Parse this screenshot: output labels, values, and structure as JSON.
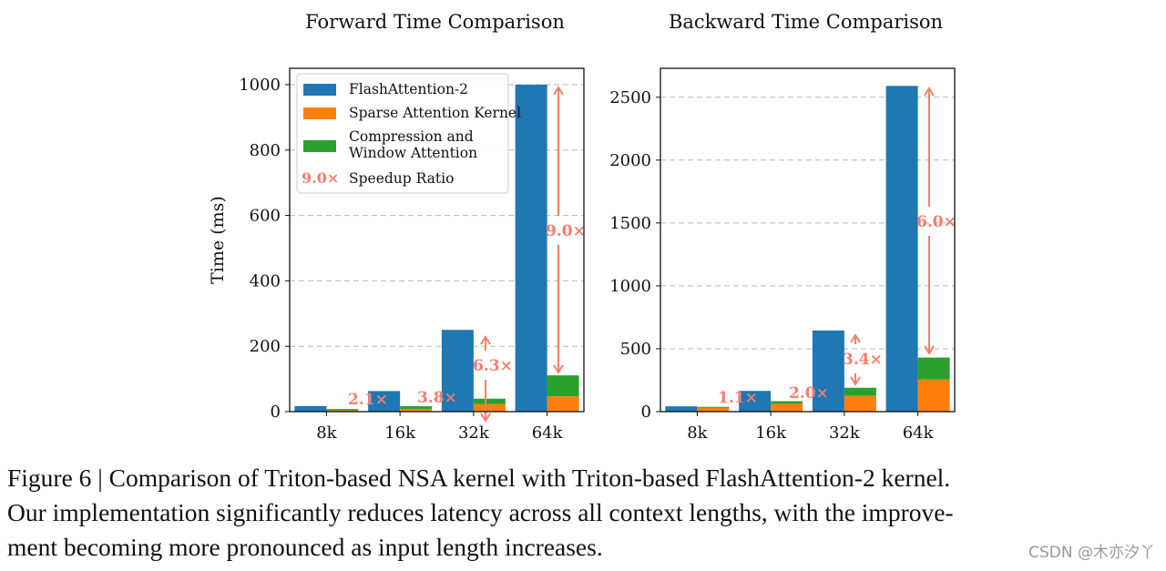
{
  "chart_data": [
    {
      "type": "bar",
      "title": "Forward Time Comparison",
      "xlabel": "",
      "ylabel": "Time (ms)",
      "categories": [
        "8k",
        "16k",
        "32k",
        "64k"
      ],
      "ylim": [
        0,
        1050
      ],
      "yticks": [
        0,
        200,
        400,
        600,
        800,
        1000
      ],
      "grid": true,
      "legend_position": "top-left",
      "series": [
        {
          "name": "FlashAttention-2",
          "color": "#1f77b4",
          "values": [
            17,
            63,
            250,
            1000
          ]
        },
        {
          "name": "Sparse Attention Kernel",
          "color": "#ff7f0e",
          "stack": "nsa",
          "values": [
            4,
            8,
            23,
            47
          ]
        },
        {
          "name": "Compression and Window Attention",
          "color": "#2ca02c",
          "stack": "nsa",
          "values": [
            4,
            8.5,
            16.6,
            64
          ]
        }
      ],
      "speedup": [
        "2.1×",
        "3.8×",
        "6.3×",
        "9.0×"
      ]
    },
    {
      "type": "bar",
      "title": "Backward Time Comparison",
      "xlabel": "",
      "ylabel": "",
      "categories": [
        "8k",
        "16k",
        "32k",
        "64k"
      ],
      "ylim": [
        0,
        2730
      ],
      "yticks": [
        0,
        500,
        1000,
        1500,
        2000,
        2500
      ],
      "grid": true,
      "series": [
        {
          "name": "FlashAttention-2",
          "color": "#1f77b4",
          "values": [
            42,
            165,
            645,
            2590
          ]
        },
        {
          "name": "Sparse Attention Kernel",
          "color": "#ff7f0e",
          "stack": "nsa",
          "values": [
            30,
            62,
            125,
            255
          ]
        },
        {
          "name": "Compression and Window Attention",
          "color": "#2ca02c",
          "stack": "nsa",
          "values": [
            8,
            21,
            65,
            175
          ]
        }
      ],
      "speedup": [
        "1.1×",
        "2.0×",
        "3.4×",
        "6.0×"
      ]
    }
  ],
  "legend": {
    "items": [
      "FlashAttention-2",
      "Sparse Attention Kernel",
      "Compression and\nWindow Attention"
    ],
    "speedup_sample": "9.0×",
    "speedup_label": "Speedup Ratio"
  },
  "speedup_color": "#f47e6c",
  "caption": {
    "line1": "Figure 6 | Comparison of Triton-based NSA kernel with Triton-based FlashAttention-2 kernel.",
    "line2": "Our implementation significantly reduces latency across all context lengths, with the improve-",
    "line3": "ment becoming more pronounced as input length increases."
  },
  "watermark": "CSDN @木亦汐丫"
}
